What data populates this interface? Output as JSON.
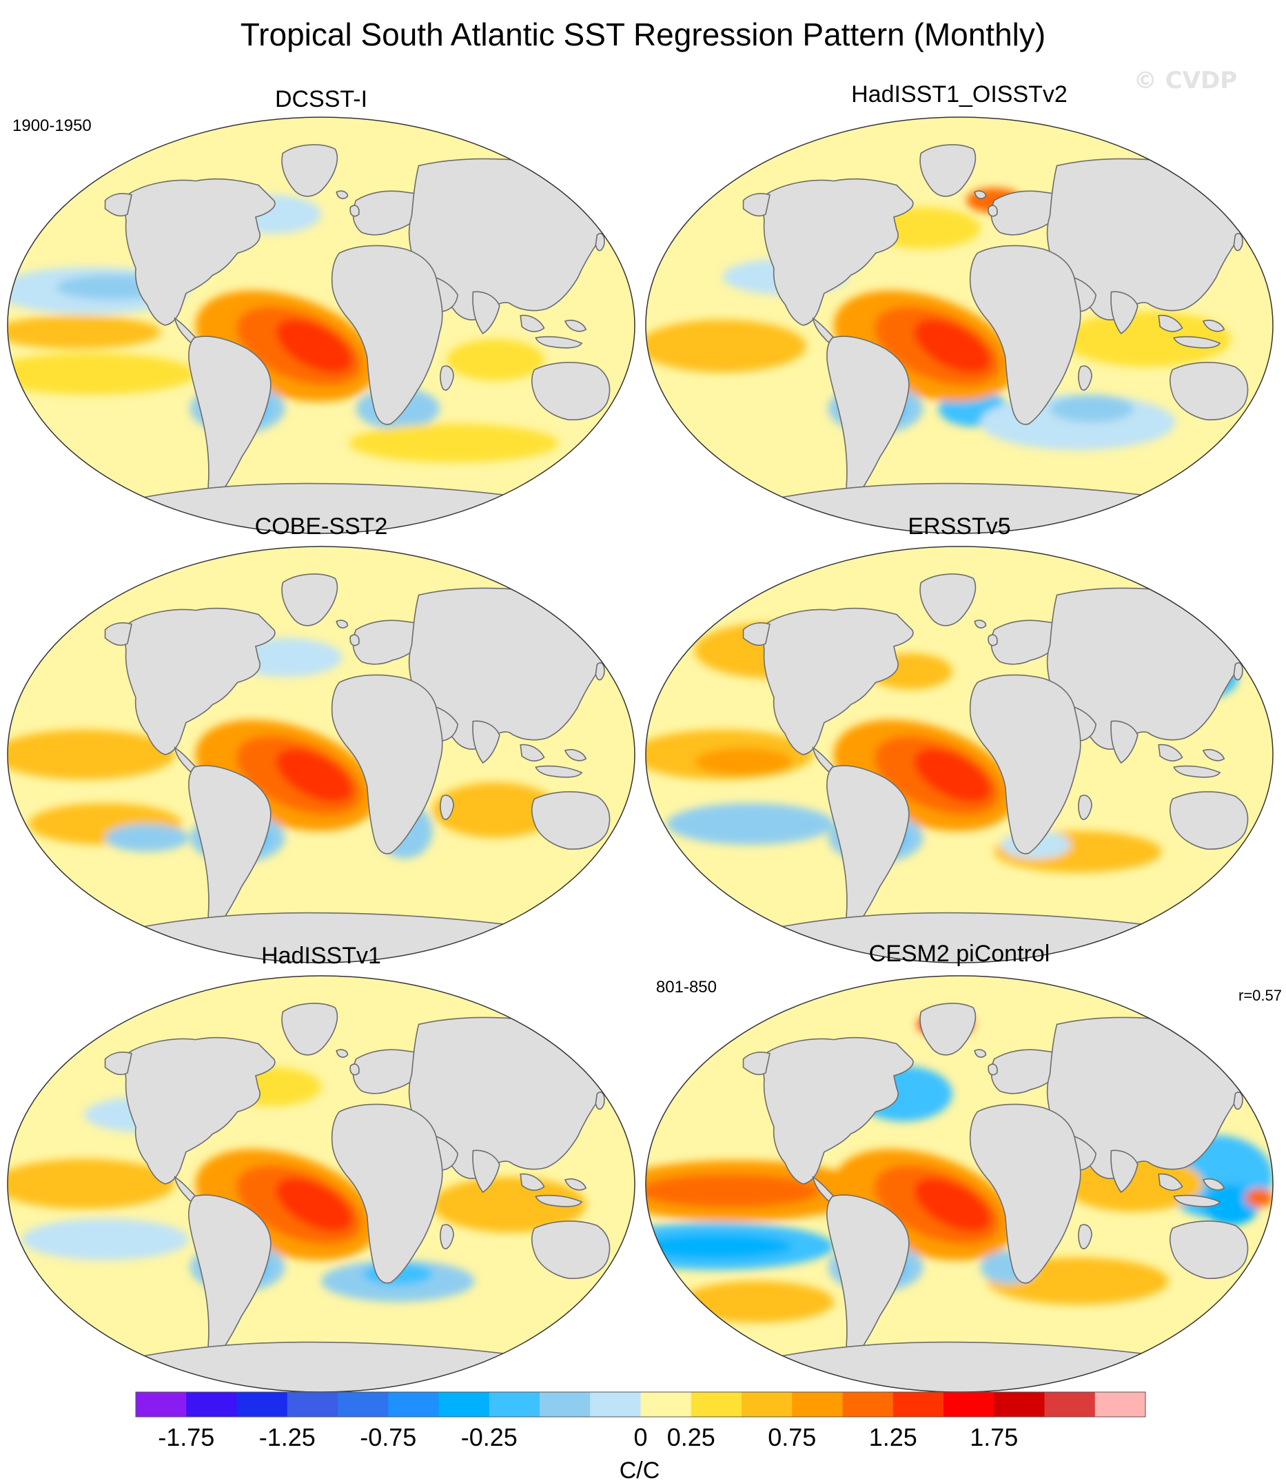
{
  "title": "Tropical South Atlantic SST Regression Pattern (Monthly)",
  "watermark": "© CVDP",
  "panels": [
    {
      "name": "DCSST-I",
      "period": "1900-1950"
    },
    {
      "name": "HadISST1_OISSTv2"
    },
    {
      "name": "COBE-SST2"
    },
    {
      "name": "ERSSTv5"
    },
    {
      "name": "HadISSTv1"
    },
    {
      "name": "CESM2 piControl",
      "period": "801-850",
      "corr": "r=0.57"
    }
  ],
  "colorbar": {
    "unit": "C/C",
    "tick_labels": [
      "-1.75",
      "-1.25",
      "-0.75",
      "-0.25",
      "0",
      "0.25",
      "0.75",
      "1.25",
      "1.75"
    ],
    "colors": [
      "#8a1cf2",
      "#3c12f7",
      "#1a2cf0",
      "#3c5de6",
      "#2f73ee",
      "#1e90ff",
      "#00b1ff",
      "#3ec1ff",
      "#8fcdf0",
      "#bfe3f7",
      "#fff6a6",
      "#ffe135",
      "#ffbf1a",
      "#ff9c00",
      "#ff6a00",
      "#ff3300",
      "#ff0000",
      "#d20000",
      "#db3b3b",
      "#ffb3b3"
    ]
  },
  "land_color": "#dedede",
  "ocean_base_color": "#fff6a6"
}
